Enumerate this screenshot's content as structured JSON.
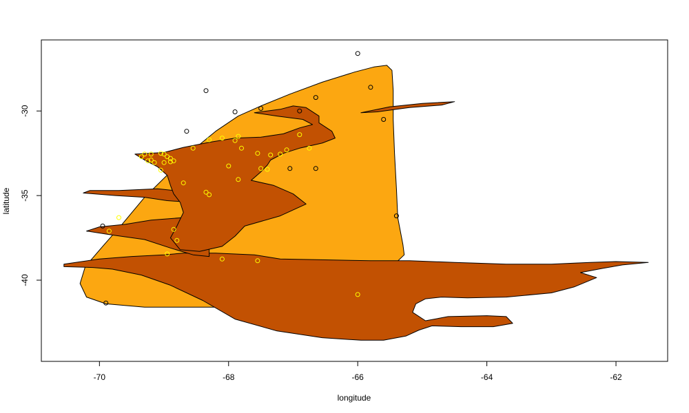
{
  "chart_data": {
    "type": "scatter",
    "title": "",
    "xlabel": "longitude",
    "ylabel": "latitude",
    "xlim": [
      -70.9,
      -61.2
    ],
    "ylim": [
      -44.8,
      -25.8
    ],
    "x_ticks": [
      -70,
      -68,
      -66,
      -64,
      -62
    ],
    "y_ticks": [
      -30,
      -35,
      -40
    ],
    "grid": false,
    "legend": "none",
    "colors": {
      "outer_region": "#FCA711",
      "inner_region": "#C25102",
      "outline": "#000000",
      "points_outer": "#000000",
      "points_inner": "#FFFF00"
    },
    "regions": [
      {
        "fill": "outer_region",
        "vertices": [
          [
            -70.3,
            -40.2
          ],
          [
            -70.22,
            -39.2
          ],
          [
            -69.95,
            -38.0
          ],
          [
            -69.65,
            -36.7
          ],
          [
            -69.3,
            -35.1
          ],
          [
            -68.9,
            -33.6
          ],
          [
            -68.55,
            -32.3
          ],
          [
            -68.2,
            -31.2
          ],
          [
            -67.85,
            -30.3
          ],
          [
            -67.5,
            -29.7
          ],
          [
            -67.05,
            -29.0
          ],
          [
            -66.55,
            -28.3
          ],
          [
            -66.05,
            -27.7
          ],
          [
            -65.75,
            -27.4
          ],
          [
            -65.55,
            -27.3
          ],
          [
            -65.47,
            -27.6
          ],
          [
            -65.45,
            -28.8
          ],
          [
            -65.45,
            -30.5
          ],
          [
            -65.43,
            -32.5
          ],
          [
            -65.4,
            -34.6
          ],
          [
            -65.38,
            -36.3
          ],
          [
            -65.3,
            -37.9
          ],
          [
            -65.28,
            -38.5
          ],
          [
            -66.1,
            -41.5
          ],
          [
            -68.0,
            -41.6
          ],
          [
            -69.3,
            -41.6
          ],
          [
            -69.9,
            -41.4
          ],
          [
            -70.2,
            -41.0
          ]
        ]
      },
      {
        "fill": "inner_region",
        "vertices": [
          [
            -70.55,
            -39.05
          ],
          [
            -70.0,
            -38.75
          ],
          [
            -69.5,
            -38.6
          ],
          [
            -69.0,
            -38.5
          ],
          [
            -68.7,
            -38.4
          ],
          [
            -68.2,
            -38.4
          ],
          [
            -67.6,
            -38.5
          ],
          [
            -67.2,
            -38.75
          ],
          [
            -66.5,
            -38.8
          ],
          [
            -65.8,
            -38.85
          ],
          [
            -65.2,
            -38.85
          ],
          [
            -64.5,
            -38.95
          ],
          [
            -63.7,
            -39.05
          ],
          [
            -63.0,
            -39.05
          ],
          [
            -62.4,
            -38.95
          ],
          [
            -62.0,
            -38.9
          ],
          [
            -61.5,
            -38.95
          ],
          [
            -61.9,
            -39.1
          ],
          [
            -62.2,
            -39.3
          ],
          [
            -62.55,
            -39.55
          ],
          [
            -62.3,
            -39.85
          ],
          [
            -62.65,
            -40.4
          ],
          [
            -63.0,
            -40.75
          ],
          [
            -63.7,
            -41.0
          ],
          [
            -64.3,
            -41.05
          ],
          [
            -64.7,
            -41.0
          ],
          [
            -64.95,
            -41.1
          ],
          [
            -65.1,
            -41.4
          ],
          [
            -65.15,
            -41.9
          ],
          [
            -64.95,
            -42.4
          ],
          [
            -64.6,
            -42.15
          ],
          [
            -64.0,
            -42.1
          ],
          [
            -63.7,
            -42.15
          ],
          [
            -63.6,
            -42.55
          ],
          [
            -63.9,
            -42.75
          ],
          [
            -64.4,
            -42.75
          ],
          [
            -64.85,
            -42.7
          ],
          [
            -65.05,
            -42.95
          ],
          [
            -65.25,
            -43.3
          ],
          [
            -65.6,
            -43.55
          ],
          [
            -65.95,
            -43.55
          ],
          [
            -66.55,
            -43.4
          ],
          [
            -67.25,
            -43.0
          ],
          [
            -67.9,
            -42.3
          ],
          [
            -68.4,
            -41.2
          ],
          [
            -68.9,
            -40.3
          ],
          [
            -69.35,
            -39.7
          ],
          [
            -69.8,
            -39.35
          ],
          [
            -70.1,
            -39.25
          ],
          [
            -70.55,
            -39.2
          ]
        ]
      },
      {
        "fill": "inner_region",
        "vertices": [
          [
            -70.2,
            -37.1
          ],
          [
            -69.85,
            -37.3
          ],
          [
            -69.3,
            -37.6
          ],
          [
            -68.9,
            -38.1
          ],
          [
            -68.55,
            -38.5
          ],
          [
            -68.3,
            -38.6
          ],
          [
            -68.3,
            -37.4
          ],
          [
            -68.45,
            -36.8
          ],
          [
            -68.7,
            -36.3
          ],
          [
            -69.2,
            -36.45
          ],
          [
            -69.6,
            -36.7
          ],
          [
            -70.0,
            -36.85
          ]
        ]
      },
      {
        "fill": "inner_region",
        "vertices": [
          [
            -70.25,
            -34.85
          ],
          [
            -69.75,
            -35.0
          ],
          [
            -69.3,
            -35.1
          ],
          [
            -68.95,
            -35.3
          ],
          [
            -68.55,
            -35.4
          ],
          [
            -68.6,
            -34.8
          ],
          [
            -69.1,
            -34.6
          ],
          [
            -69.7,
            -34.7
          ],
          [
            -70.15,
            -34.7
          ]
        ]
      },
      {
        "fill": "inner_region",
        "vertices": [
          [
            -69.45,
            -32.55
          ],
          [
            -69.0,
            -32.45
          ],
          [
            -68.7,
            -32.15
          ],
          [
            -68.3,
            -31.85
          ],
          [
            -67.9,
            -31.6
          ],
          [
            -67.5,
            -31.55
          ],
          [
            -67.15,
            -31.35
          ],
          [
            -66.9,
            -31.0
          ],
          [
            -66.7,
            -30.8
          ],
          [
            -66.85,
            -30.5
          ],
          [
            -67.25,
            -30.3
          ],
          [
            -67.6,
            -30.1
          ],
          [
            -67.2,
            -29.9
          ],
          [
            -67.0,
            -29.7
          ],
          [
            -66.8,
            -29.8
          ],
          [
            -66.6,
            -30.3
          ],
          [
            -66.6,
            -30.7
          ],
          [
            -66.4,
            -31.2
          ],
          [
            -66.35,
            -31.6
          ],
          [
            -66.55,
            -31.9
          ],
          [
            -66.9,
            -32.2
          ],
          [
            -67.15,
            -32.5
          ],
          [
            -67.35,
            -32.9
          ],
          [
            -67.4,
            -33.2
          ],
          [
            -67.5,
            -33.6
          ],
          [
            -67.65,
            -34.1
          ],
          [
            -67.3,
            -34.4
          ],
          [
            -67.0,
            -34.9
          ],
          [
            -66.8,
            -35.5
          ],
          [
            -67.2,
            -36.2
          ],
          [
            -67.75,
            -36.8
          ],
          [
            -67.9,
            -37.4
          ],
          [
            -68.1,
            -38.0
          ],
          [
            -68.45,
            -38.3
          ],
          [
            -68.75,
            -38.2
          ],
          [
            -68.9,
            -37.5
          ],
          [
            -68.8,
            -36.8
          ],
          [
            -68.7,
            -36.0
          ],
          [
            -68.75,
            -35.4
          ],
          [
            -68.85,
            -34.9
          ],
          [
            -68.9,
            -34.4
          ],
          [
            -68.95,
            -33.8
          ],
          [
            -69.1,
            -33.3
          ],
          [
            -69.3,
            -32.9
          ]
        ]
      },
      {
        "fill": "inner_region",
        "vertices": [
          [
            -65.95,
            -30.1
          ],
          [
            -65.5,
            -29.75
          ],
          [
            -65.0,
            -29.55
          ],
          [
            -64.5,
            -29.45
          ],
          [
            -64.7,
            -29.65
          ],
          [
            -65.2,
            -29.8
          ],
          [
            -65.7,
            -30.05
          ]
        ]
      }
    ],
    "points_outer": {
      "x": [
        -66.0,
        -65.8,
        -68.35,
        -66.65,
        -67.9,
        -67.5,
        -66.9,
        -65.6,
        -68.65,
        -66.65,
        -67.05,
        -65.4,
        -69.95,
        -69.9
      ],
      "y": [
        -26.6,
        -28.6,
        -28.8,
        -29.2,
        -30.05,
        -29.85,
        -30.0,
        -30.5,
        -31.2,
        -33.4,
        -33.4,
        -36.2,
        -36.8,
        -41.35
      ]
    },
    "points_inner": {
      "x": [
        -69.2,
        -69.05,
        -69.0,
        -68.95,
        -68.9,
        -68.85,
        -68.9,
        -69.0,
        -69.05,
        -69.15,
        -69.2,
        -69.25,
        -69.3,
        -69.35,
        -68.55,
        -68.7,
        -68.35,
        -68.3,
        -68.3,
        -68.1,
        -67.9,
        -67.85,
        -67.8,
        -67.55,
        -67.5,
        -67.4,
        -67.35,
        -67.2,
        -67.1,
        -66.9,
        -66.75,
        -67.55,
        -68.1,
        -68.8,
        -68.85,
        -68.95,
        -69.7,
        -69.85,
        -66.0,
        -67.85,
        -68.0
      ],
      "y": [
        -32.55,
        -32.5,
        -32.55,
        -32.7,
        -32.8,
        -32.95,
        -33.0,
        -33.05,
        -33.5,
        -33.05,
        -32.9,
        -32.95,
        -32.55,
        -32.7,
        -32.2,
        -34.25,
        -34.8,
        -34.95,
        -31.7,
        -31.6,
        -31.75,
        -31.5,
        -32.2,
        -32.5,
        -33.4,
        -33.45,
        -32.6,
        -32.55,
        -32.3,
        -31.4,
        -32.2,
        -38.85,
        -38.75,
        -37.65,
        -37.0,
        -38.45,
        -36.3,
        -37.1,
        -40.85,
        -34.05,
        -33.25
      ]
    }
  }
}
